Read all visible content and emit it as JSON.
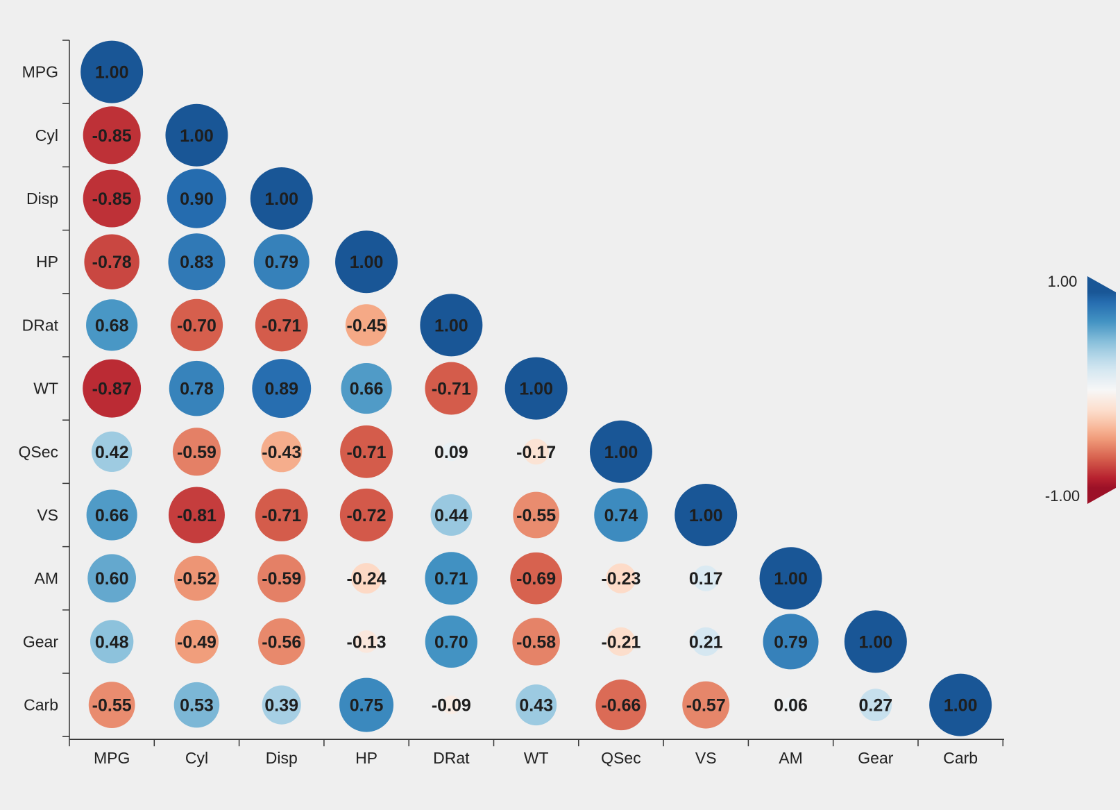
{
  "chart_data": {
    "type": "heatmap",
    "title": "",
    "variables": [
      "MPG",
      "Cyl",
      "Disp",
      "HP",
      "DRat",
      "WT",
      "QSec",
      "VS",
      "AM",
      "Gear",
      "Carb"
    ],
    "value_format": "2 decimals",
    "matrix": [
      [
        1.0
      ],
      [
        -0.85,
        1.0
      ],
      [
        -0.85,
        0.9,
        1.0
      ],
      [
        -0.78,
        0.83,
        0.79,
        1.0
      ],
      [
        0.68,
        -0.7,
        -0.71,
        -0.45,
        1.0
      ],
      [
        -0.87,
        0.78,
        0.89,
        0.66,
        -0.71,
        1.0
      ],
      [
        0.42,
        -0.59,
        -0.43,
        -0.71,
        0.09,
        -0.17,
        1.0
      ],
      [
        0.66,
        -0.81,
        -0.71,
        -0.72,
        0.44,
        -0.55,
        0.74,
        1.0
      ],
      [
        0.6,
        -0.52,
        -0.59,
        -0.24,
        0.71,
        -0.69,
        -0.23,
        0.17,
        1.0
      ],
      [
        0.48,
        -0.49,
        -0.56,
        -0.13,
        0.7,
        -0.58,
        -0.21,
        0.21,
        0.79,
        1.0
      ],
      [
        -0.55,
        0.53,
        0.39,
        0.75,
        -0.09,
        0.43,
        -0.66,
        -0.57,
        0.06,
        0.27,
        1.0
      ]
    ],
    "labels": [
      [
        "1.00"
      ],
      [
        "-0.85",
        "1.00"
      ],
      [
        "-0.85",
        "0.90",
        "1.00"
      ],
      [
        "-0.78",
        "0.83",
        "0.79",
        "1.00"
      ],
      [
        "0.68",
        "-0.70",
        "-0.71",
        "-0.45",
        "1.00"
      ],
      [
        "-0.87",
        "0.78",
        "0.89",
        "0.66",
        "-0.71",
        "1.00"
      ],
      [
        "0.42",
        "-0.59",
        "-0.43",
        "-0.71",
        "0.09",
        "-0.17",
        "1.00"
      ],
      [
        "0.66",
        "-0.81",
        "-0.71",
        "-0.72",
        "0.44",
        "-0.55",
        "0.74",
        "1.00"
      ],
      [
        "0.60",
        "-0.52",
        "-0.59",
        "-0.24",
        "0.71",
        "-0.69",
        "-0.23",
        "0.17",
        "1.00"
      ],
      [
        "0.48",
        "-0.49",
        "-0.56",
        "-0.13",
        "0.70",
        "-0.58",
        "-0.21",
        "0.21",
        "0.79",
        "1.00"
      ],
      [
        "-0.55",
        "0.53",
        "0.39",
        "0.75",
        "-0.09",
        "0.43",
        "-0.66",
        "-0.57",
        "0.06",
        "0.27",
        "1.00"
      ]
    ],
    "marker": "circle",
    "circle_area_encodes": "absolute value",
    "colormap": "RdBu",
    "color_range": [
      -1.0,
      1.0
    ],
    "colorbar": {
      "max_label": "1.00",
      "min_label": "-1.00",
      "placement": "right",
      "extend": "both"
    },
    "colors": {
      "background": "#efefef",
      "positive_end": "#2166ac",
      "negative_end": "#b2182b",
      "neutral": "#f7f7f7"
    },
    "grid": false,
    "legend": "colorbar-right"
  }
}
